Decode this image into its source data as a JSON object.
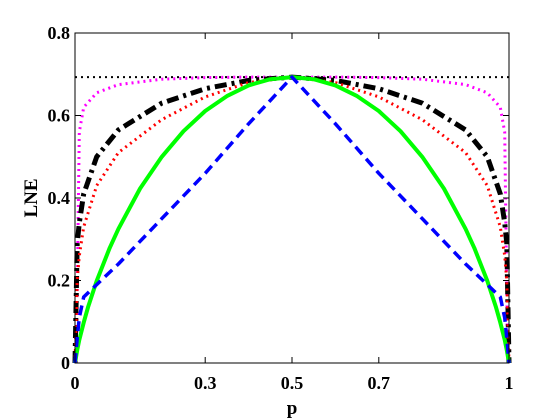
{
  "chart_data": {
    "type": "line",
    "title": "",
    "xlabel": "p",
    "ylabel": "LNE",
    "xlim": [
      0,
      1
    ],
    "ylim": [
      0,
      0.8
    ],
    "xticks": [
      0,
      0.3,
      0.5,
      0.7,
      1
    ],
    "xtick_labels": [
      "0",
      "0.3",
      "0.5",
      "0.7",
      "1"
    ],
    "yticks": [
      0,
      0.2,
      0.4,
      0.6,
      0.8
    ],
    "ytick_labels": [
      "0",
      "0.2",
      "0.4",
      "0.6",
      "0.8"
    ],
    "grid": false,
    "legend": "none",
    "series": [
      {
        "style": "dotted",
        "color": "#000000",
        "x": [
          0,
          1
        ],
        "y": [
          0.693,
          0.693
        ]
      },
      {
        "style": "dotted",
        "color": "#ff00ff",
        "x": [
          0.003,
          0.01,
          0.02,
          0.05,
          0.1,
          0.2,
          0.3,
          0.4,
          0.5,
          0.6,
          0.7,
          0.8,
          0.9,
          0.95,
          0.98,
          0.99,
          0.997
        ],
        "y": [
          0.0,
          0.56,
          0.62,
          0.655,
          0.675,
          0.688,
          0.692,
          0.693,
          0.693,
          0.693,
          0.692,
          0.688,
          0.675,
          0.655,
          0.62,
          0.56,
          0.0
        ]
      },
      {
        "style": "dashdot",
        "color": "#000000",
        "x": [
          0.0,
          0.005,
          0.01,
          0.02,
          0.05,
          0.1,
          0.2,
          0.3,
          0.4,
          0.5,
          0.6,
          0.7,
          0.8,
          0.9,
          0.95,
          0.98,
          0.99,
          0.995,
          1.0
        ],
        "y": [
          0.0,
          0.29,
          0.34,
          0.41,
          0.5,
          0.565,
          0.63,
          0.665,
          0.685,
          0.693,
          0.685,
          0.665,
          0.63,
          0.565,
          0.5,
          0.41,
          0.34,
          0.29,
          0.0
        ]
      },
      {
        "style": "dotted",
        "color": "#ff0000",
        "x": [
          0.0,
          0.005,
          0.01,
          0.02,
          0.05,
          0.1,
          0.2,
          0.3,
          0.4,
          0.5,
          0.6,
          0.7,
          0.8,
          0.9,
          0.95,
          0.98,
          0.99,
          0.995,
          1.0
        ],
        "y": [
          0.0,
          0.2,
          0.26,
          0.33,
          0.43,
          0.51,
          0.59,
          0.645,
          0.68,
          0.693,
          0.68,
          0.645,
          0.59,
          0.51,
          0.43,
          0.33,
          0.26,
          0.2,
          0.0
        ]
      },
      {
        "style": "solid",
        "color": "#00ff00",
        "x": [
          0.0,
          0.005,
          0.01,
          0.02,
          0.03,
          0.05,
          0.08,
          0.1,
          0.15,
          0.2,
          0.25,
          0.3,
          0.35,
          0.4,
          0.45,
          0.5,
          0.55,
          0.6,
          0.65,
          0.7,
          0.75,
          0.8,
          0.85,
          0.9,
          0.92,
          0.95,
          0.97,
          0.98,
          0.99,
          0.995,
          1.0
        ],
        "y": [
          0.0,
          0.031,
          0.056,
          0.098,
          0.135,
          0.199,
          0.279,
          0.325,
          0.423,
          0.5,
          0.562,
          0.611,
          0.647,
          0.673,
          0.688,
          0.693,
          0.688,
          0.673,
          0.647,
          0.611,
          0.562,
          0.5,
          0.423,
          0.325,
          0.279,
          0.199,
          0.135,
          0.098,
          0.056,
          0.031,
          0.0
        ]
      },
      {
        "style": "dashed",
        "color": "#0000ff",
        "x": [
          0.0,
          0.005,
          0.01,
          0.02,
          0.05,
          0.1,
          0.2,
          0.3,
          0.4,
          0.5,
          0.6,
          0.7,
          0.8,
          0.9,
          0.95,
          0.98,
          0.99,
          0.995,
          1.0
        ],
        "y": [
          0.0,
          0.06,
          0.11,
          0.16,
          0.19,
          0.24,
          0.35,
          0.46,
          0.58,
          0.693,
          0.58,
          0.46,
          0.35,
          0.24,
          0.19,
          0.16,
          0.11,
          0.06,
          0.0
        ]
      }
    ]
  }
}
